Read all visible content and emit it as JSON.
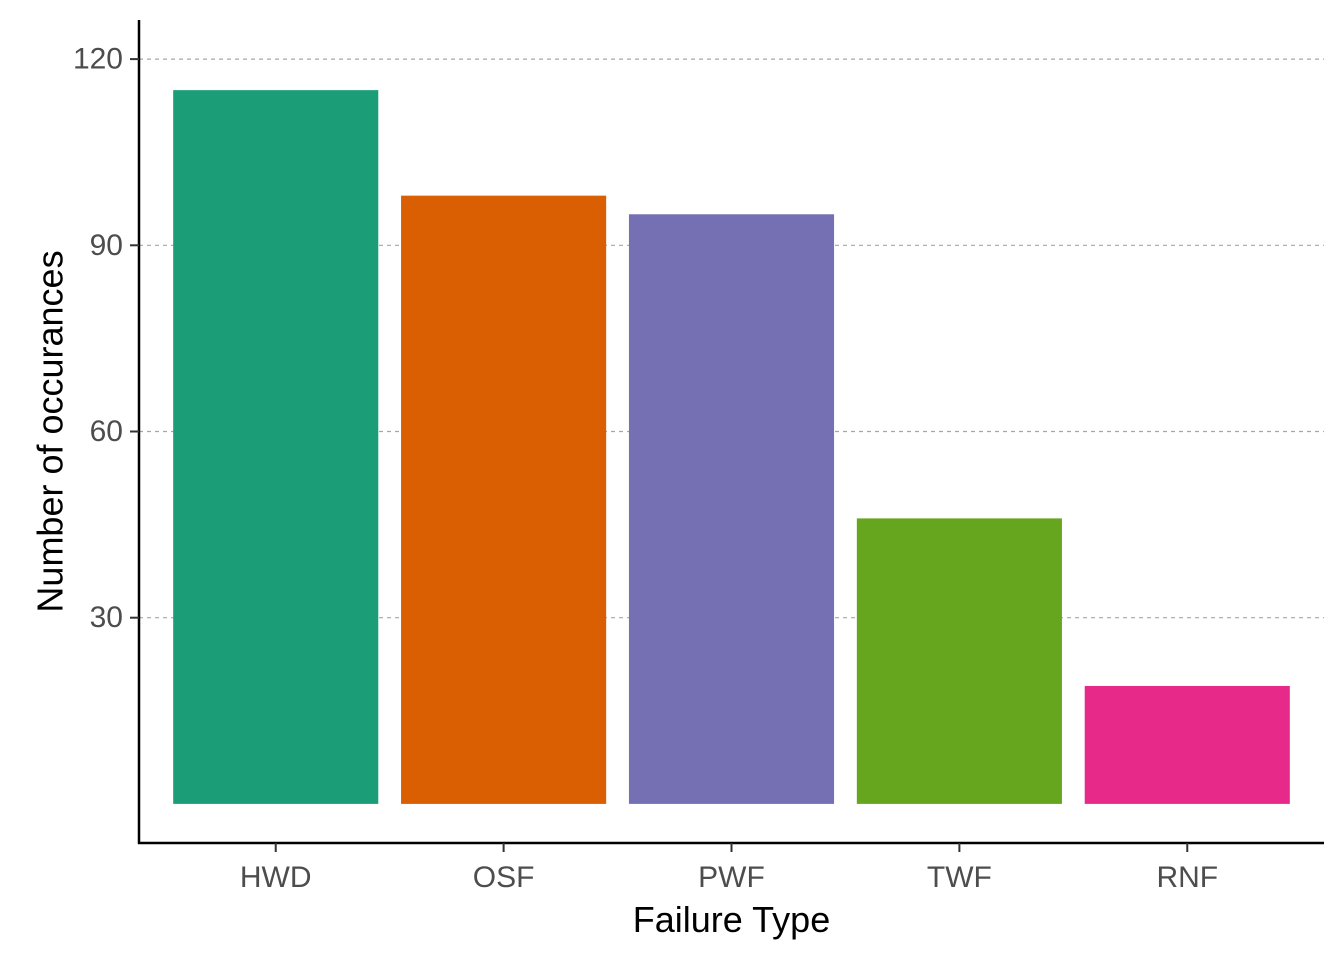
{
  "chart_data": {
    "type": "bar",
    "categories": [
      "HWD",
      "OSF",
      "PWF",
      "TWF",
      "RNF"
    ],
    "values": [
      115,
      98,
      95,
      46,
      19
    ],
    "colors": [
      "#1b9e77",
      "#d95f02",
      "#7570b3",
      "#66a61e",
      "#e7298a"
    ],
    "xlabel": "Failure Type",
    "ylabel": "Number of occurances",
    "yticks": [
      30,
      60,
      90,
      120
    ],
    "ylim": [
      -6.3,
      126.3
    ],
    "grid": {
      "major_y": true,
      "style": "dashed"
    }
  }
}
